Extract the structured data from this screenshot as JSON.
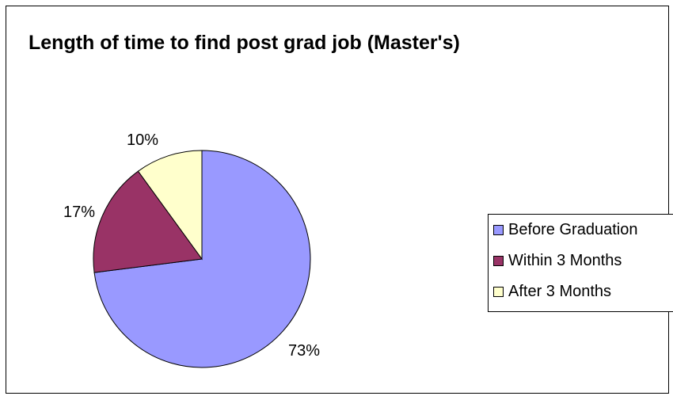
{
  "chart_data": {
    "type": "pie",
    "title": "Length of time to find post grad job (Master's)",
    "categories": [
      "Before Graduation",
      "Within 3 Months",
      "After 3 Months"
    ],
    "values": [
      73,
      17,
      10
    ],
    "data_labels": [
      "73%",
      "17%",
      "10%"
    ],
    "colors": [
      "#9999ff",
      "#993366",
      "#ffffcc"
    ],
    "legend_position": "right"
  }
}
